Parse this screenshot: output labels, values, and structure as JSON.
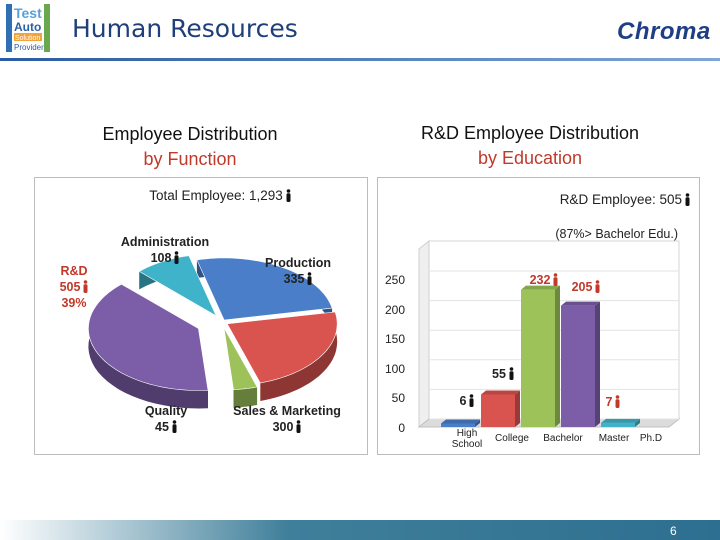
{
  "header": {
    "title": "Human Resources",
    "logo_left_words": [
      "Test",
      "Auto",
      "Solution",
      "Provider"
    ],
    "logo_right": "Chroma"
  },
  "left_chart": {
    "title_line1": "Employee Distribution",
    "title_line2": "by Function",
    "total_label": "Total Employee: 1,293",
    "chart_data": {
      "type": "pie",
      "title": "Employee Distribution by Function",
      "total": 1293,
      "slices": [
        {
          "name": "Production",
          "value": 335,
          "color": "#4a7ec9"
        },
        {
          "name": "Sales & Marketing",
          "value": 300,
          "color": "#d9534f"
        },
        {
          "name": "Quality",
          "value": 45,
          "color": "#9dc25a"
        },
        {
          "name": "R&D",
          "value": 505,
          "percent_label": "39%",
          "color": "#7b5ea7"
        },
        {
          "name": "Administration",
          "value": 108,
          "color": "#3fb3c9"
        }
      ]
    },
    "labels": {
      "administration_name": "Administration",
      "administration_value": "108",
      "production_name": "Production",
      "production_value": "335",
      "rd_name": "R&D",
      "rd_value": "505",
      "rd_percent": "39%",
      "quality_name": "Quality",
      "quality_value": "45",
      "sales_name": "Sales & Marketing",
      "sales_value": "300"
    }
  },
  "right_chart": {
    "title_line1": "R&D Employee Distribution",
    "title_line2": "by Education",
    "total_label": "R&D Employee: 505",
    "note": "(87%> Bachelor Edu.)",
    "chart_data": {
      "type": "bar",
      "title": "R&D Employee Distribution by Education",
      "categories": [
        "High School",
        "College",
        "Bachelor",
        "Master",
        "Ph.D"
      ],
      "values": [
        6,
        55,
        232,
        205,
        7
      ],
      "colors": [
        "#4a7ec9",
        "#d9534f",
        "#9dc25a",
        "#7b5ea7",
        "#3fb3c9"
      ],
      "ylim": [
        0,
        250
      ],
      "yticks": [
        0,
        50,
        100,
        150,
        200,
        250
      ]
    },
    "x_labels": {
      "high": "High",
      "school": "School",
      "college": "College",
      "bachelor": "Bachelor",
      "master": "Master",
      "phd": "Ph.D"
    },
    "value_labels": {
      "high_school": "6",
      "college": "55",
      "bachelor": "232",
      "master": "205",
      "phd": "7"
    }
  },
  "footer": {
    "page_number": "6"
  }
}
